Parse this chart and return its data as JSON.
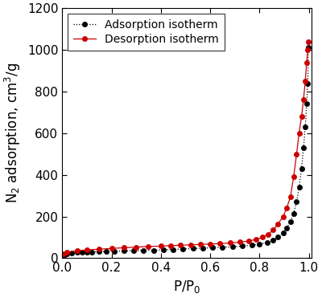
{
  "adsorption_x": [
    0.005,
    0.01,
    0.02,
    0.04,
    0.06,
    0.08,
    0.1,
    0.12,
    0.15,
    0.18,
    0.21,
    0.25,
    0.29,
    0.33,
    0.37,
    0.41,
    0.45,
    0.49,
    0.53,
    0.57,
    0.61,
    0.65,
    0.69,
    0.73,
    0.77,
    0.8,
    0.83,
    0.855,
    0.875,
    0.895,
    0.91,
    0.925,
    0.938,
    0.95,
    0.96,
    0.97,
    0.978,
    0.985,
    0.991,
    0.995,
    0.998
  ],
  "adsorption_y": [
    15,
    18,
    22,
    25,
    27,
    28,
    29,
    30,
    31,
    32,
    33,
    35,
    36,
    37,
    38,
    40,
    42,
    44,
    46,
    48,
    50,
    52,
    55,
    58,
    62,
    68,
    75,
    85,
    100,
    120,
    145,
    175,
    215,
    270,
    340,
    430,
    530,
    630,
    740,
    840,
    1010
  ],
  "desorption_x": [
    0.998,
    0.995,
    0.991,
    0.985,
    0.978,
    0.97,
    0.96,
    0.95,
    0.938,
    0.925,
    0.91,
    0.895,
    0.875,
    0.855,
    0.835,
    0.81,
    0.785,
    0.755,
    0.72,
    0.68,
    0.64,
    0.6,
    0.56,
    0.52,
    0.48,
    0.44,
    0.4,
    0.35,
    0.3,
    0.25,
    0.2,
    0.15,
    0.1,
    0.06,
    0.02,
    0.005
  ],
  "desorption_y": [
    1040,
    1000,
    940,
    850,
    760,
    680,
    600,
    500,
    390,
    295,
    240,
    200,
    165,
    135,
    115,
    100,
    90,
    82,
    77,
    73,
    70,
    68,
    66,
    64,
    62,
    60,
    58,
    56,
    53,
    50,
    47,
    43,
    40,
    36,
    28,
    20
  ],
  "xlabel": "P/P$_0$",
  "ylabel": "N$_2$ adsorption, cm$^3$/g",
  "xlim": [
    0.0,
    1.01
  ],
  "ylim": [
    0,
    1200
  ],
  "xticks": [
    0.0,
    0.2,
    0.4,
    0.6,
    0.8,
    1.0
  ],
  "yticks": [
    0,
    200,
    400,
    600,
    800,
    1000,
    1200
  ],
  "adsorption_color": "#000000",
  "desorption_color": "#cc0000",
  "adsorption_label": "Adsorption isotherm",
  "desorption_label": "Desorption isotherm",
  "legend_loc": "upper left",
  "marker_size": 4.5,
  "line_width": 0.9,
  "background_color": "#ffffff",
  "tick_fontsize": 11,
  "label_fontsize": 12,
  "legend_fontsize": 10
}
